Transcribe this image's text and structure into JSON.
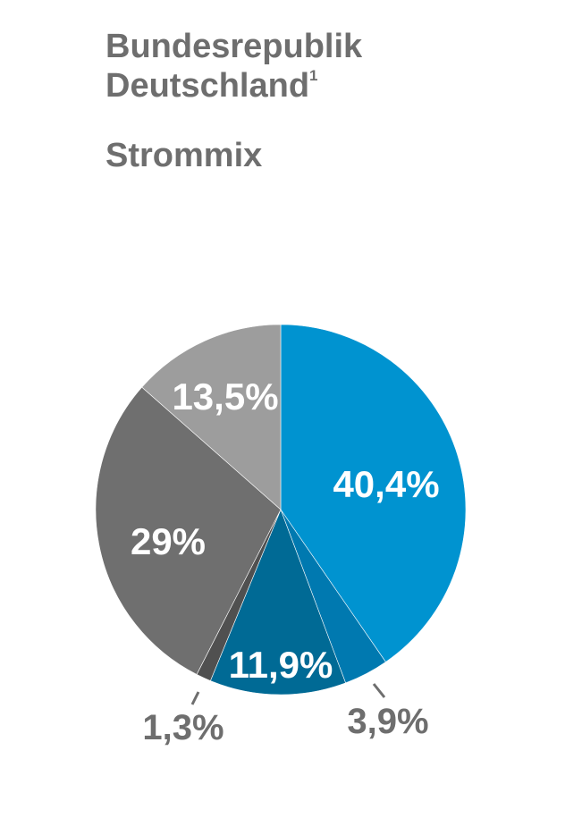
{
  "title": {
    "line1": "Bundesrepublik",
    "line2": "Deutschland",
    "footnote_mark": "1",
    "subtitle": "Strommix"
  },
  "chart_data": {
    "type": "pie",
    "title": "Bundesrepublik Deutschland¹ – Strommix",
    "start_angle_deg": 0,
    "direction": "clockwise",
    "slices": [
      {
        "label": "40,4%",
        "value": 40.4,
        "color": "#0093d0",
        "label_inside": true,
        "label_color": "#ffffff"
      },
      {
        "label": "3,9%",
        "value": 3.9,
        "color": "#0079b0",
        "label_inside": false,
        "label_color": "#6e6e6e"
      },
      {
        "label": "11,9%",
        "value": 11.9,
        "color": "#006a95",
        "label_inside": true,
        "label_color": "#ffffff"
      },
      {
        "label": "1,3%",
        "value": 1.3,
        "color": "#505050",
        "label_inside": false,
        "label_color": "#6e6e6e"
      },
      {
        "label": "29%",
        "value": 29.0,
        "color": "#6f6f6f",
        "label_inside": true,
        "label_color": "#ffffff"
      },
      {
        "label": "13,5%",
        "value": 13.5,
        "color": "#9d9d9d",
        "label_inside": true,
        "label_color": "#ffffff"
      }
    ]
  }
}
